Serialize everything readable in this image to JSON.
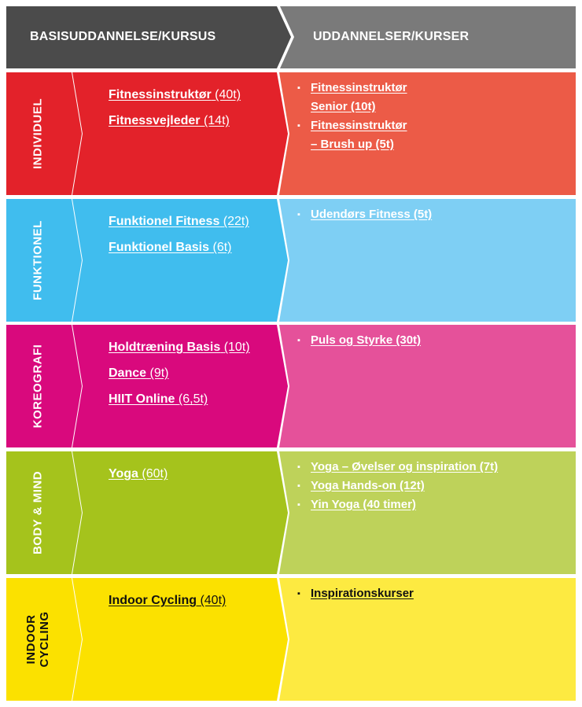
{
  "header": {
    "left_label": "BASISUDDANNELSE/KURSUS",
    "right_label": "UDDANNELSER/KURSER"
  },
  "rows": [
    {
      "category": "INDIVIDUEL",
      "colors": {
        "cat": "#e3222a",
        "basis": "#e3222a",
        "list": "#ec5b47"
      },
      "basis": [
        {
          "name": "Fitnessinstruktør",
          "hours": "(40t)"
        },
        {
          "name": "Fitnessvejleder",
          "hours": "(14t)"
        }
      ],
      "courses": [
        {
          "lines": [
            "Fitnessinstruktør",
            "Senior (10t)"
          ]
        },
        {
          "lines": [
            "Fitnessinstruktør",
            "– Brush up (5t)"
          ]
        }
      ]
    },
    {
      "category": "FUNKTIONEL",
      "colors": {
        "cat": "#40bdee",
        "basis": "#40bdee",
        "list": "#7ecff4"
      },
      "basis": [
        {
          "name": "Funktionel Fitness",
          "hours": "(22t)"
        },
        {
          "name": "Funktionel Basis",
          "hours": "(6t)"
        }
      ],
      "courses": [
        {
          "lines": [
            "Udendørs Fitness (5t)"
          ]
        }
      ]
    },
    {
      "category": "KOREOGRAFI",
      "colors": {
        "cat": "#d9097d",
        "basis": "#d9097d",
        "list": "#e5519a"
      },
      "basis": [
        {
          "name": "Holdtræning Basis",
          "hours": "(10t)"
        },
        {
          "name": "Dance",
          "hours": "(9t)"
        },
        {
          "name": "HIIT Online",
          "hours": "(6,5t)"
        }
      ],
      "courses": [
        {
          "lines": [
            "Puls og Styrke (30t)"
          ]
        }
      ]
    },
    {
      "category": "BODY & MIND",
      "colors": {
        "cat": "#a5c31c",
        "basis": "#a5c31c",
        "list": "#bed25a"
      },
      "basis": [
        {
          "name": "Yoga",
          "hours": "(60t)"
        }
      ],
      "courses": [
        {
          "lines": [
            "Yoga – Øvelser og inspiration (7t)"
          ]
        },
        {
          "lines": [
            "Yoga Hands-on (12t)"
          ]
        },
        {
          "lines": [
            "Yin Yoga (40 timer)"
          ]
        }
      ]
    },
    {
      "category": "INDOOR CYCLING",
      "category_lines": [
        "INDOOR",
        "CYCLING"
      ],
      "colors": {
        "cat": "#fbe100",
        "basis": "#fbe100",
        "list": "#fdea41"
      },
      "basis": [
        {
          "name": "Indoor Cycling",
          "hours": "(40t)"
        }
      ],
      "courses": [
        {
          "lines": [
            "Inspirationskurser"
          ]
        }
      ]
    }
  ],
  "colors": {
    "header_left": "#4b4b4b",
    "header_right": "#7a7a7a"
  }
}
